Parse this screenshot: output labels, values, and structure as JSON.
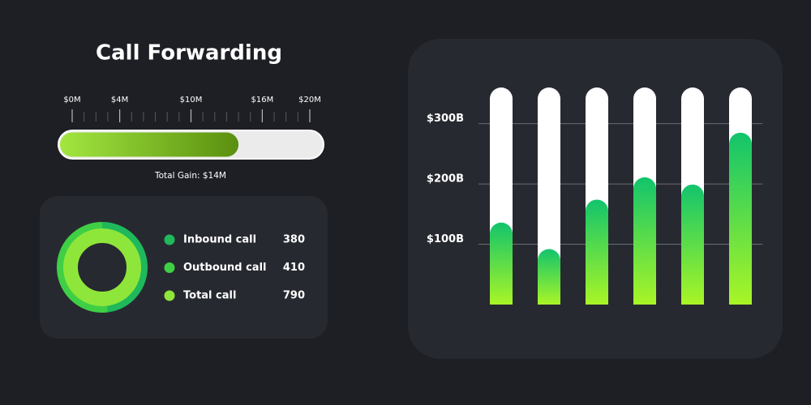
{
  "chart_data": [
    {
      "type": "progress",
      "title": "Call Forwarding",
      "value": 14,
      "value_label": "Total Gain: $14M",
      "xlim": [
        0,
        20
      ],
      "xticks": [
        {
          "value": 0,
          "label": "$0M"
        },
        {
          "value": 4,
          "label": "$4M"
        },
        {
          "value": 10,
          "label": "$10M"
        },
        {
          "value": 16,
          "label": "$16M"
        },
        {
          "value": 20,
          "label": "$20M"
        }
      ],
      "color": [
        "#a2e640",
        "#5a8f0f"
      ],
      "track_color": "#ebebeb"
    },
    {
      "type": "donut",
      "series": [
        {
          "name": "Inbound call",
          "color": "#1fb85b",
          "values": [
            380
          ]
        },
        {
          "name": "Outbound call",
          "color": "#3fcf45",
          "values": [
            410
          ]
        },
        {
          "name": "Total call",
          "color": "#8fe63a",
          "values": [
            790
          ]
        }
      ]
    },
    {
      "type": "bar",
      "values": [
        136,
        92,
        174,
        211,
        199,
        285
      ],
      "ylim": [
        0,
        360
      ],
      "yticks": [
        {
          "value": 100,
          "label": "$100B"
        },
        {
          "value": 200,
          "label": "$200B"
        },
        {
          "value": 300,
          "label": "$300B"
        }
      ],
      "grid": true,
      "color": [
        "#12c46c",
        "#a9f526"
      ],
      "track_color": "#ffffff"
    }
  ]
}
